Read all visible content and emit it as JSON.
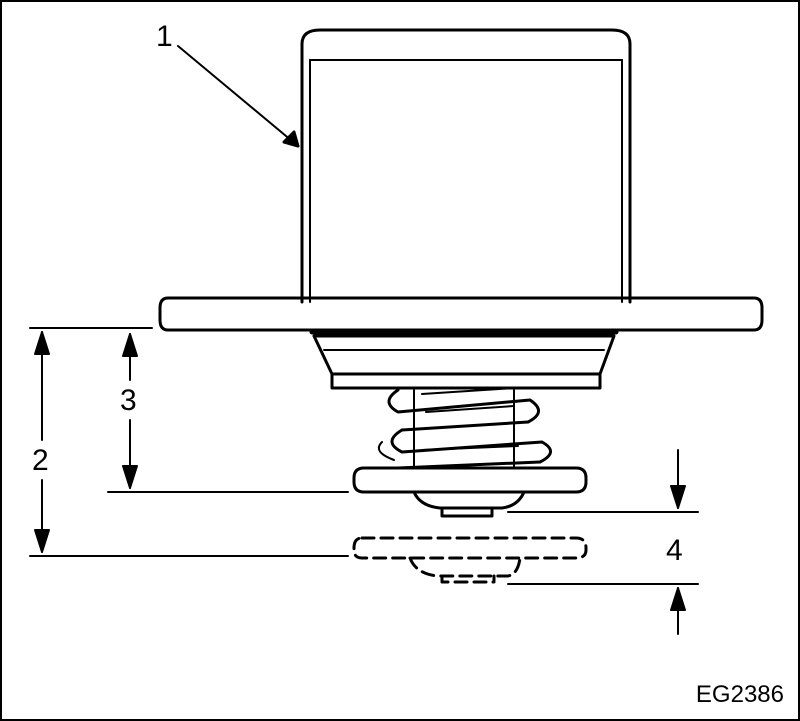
{
  "figure": {
    "code": "EG2386",
    "callouts": [
      "1",
      "2",
      "3",
      "4"
    ]
  },
  "parts": {
    "housing": "thermostat-housing",
    "flange": "mounting-flange",
    "spring": "coil-spring",
    "valve_closed": "valve-plate-closed",
    "valve_open": "valve-plate-open-dashed"
  },
  "colors": {
    "line": "#000000",
    "background": "#ffffff"
  }
}
